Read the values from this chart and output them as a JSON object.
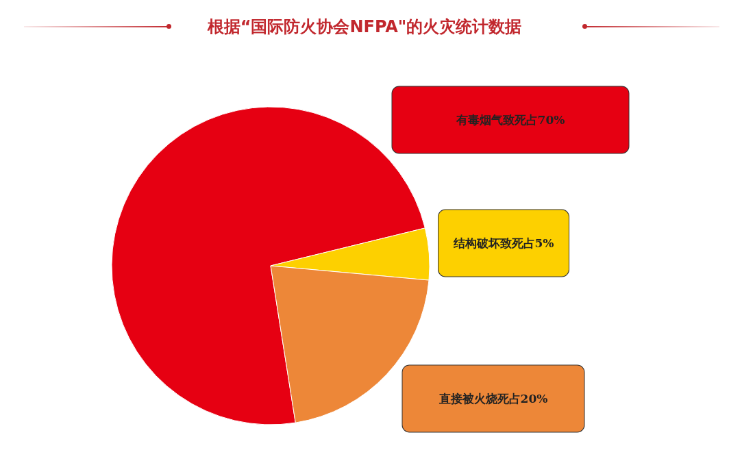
{
  "chart_data": {
    "type": "pie",
    "title": "根据“国际防火协会NFPA\"的火灾统计数据",
    "categories": [
      "有毒烟气致死占70%",
      "结构破坏致死占5%",
      "直接被火烧死占20%"
    ],
    "values": [
      70,
      5,
      20
    ],
    "colors": [
      "#e60012",
      "#fdd000",
      "#ed8738"
    ],
    "legend": false
  }
}
